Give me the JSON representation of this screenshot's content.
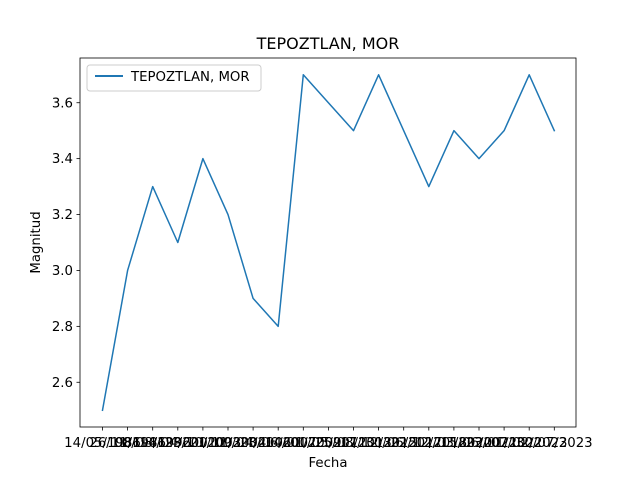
{
  "chart_data": {
    "type": "line",
    "title": "TEPOZTLAN, MOR",
    "xlabel": "Fecha",
    "ylabel": "Magnitud",
    "x": [
      "14/05/1986",
      "26/11/1986",
      "08/08/1996",
      "14/04/2001",
      "23/10/2003",
      "21/11/2004",
      "09/04/2006",
      "23/06/2007",
      "14/01/2009",
      "01/05/2011",
      "25/08/2013",
      "17/12/2015",
      "30/06/2017",
      "22/12/2018",
      "12/03/2020",
      "15/06/2021",
      "23/01/2022",
      "07/02/2023",
      "30/07/2023"
    ],
    "series": [
      {
        "name": "TEPOZTLAN, MOR",
        "values": [
          2.5,
          3.0,
          3.3,
          3.1,
          3.4,
          3.2,
          2.9,
          2.8,
          3.7,
          3.6,
          3.5,
          3.7,
          3.5,
          3.3,
          3.5,
          3.4,
          3.5,
          3.7,
          3.5
        ],
        "color": "#1f77b4"
      }
    ],
    "yticks": [
      "2.6",
      "2.8",
      "3.0",
      "3.2",
      "3.4",
      "3.6"
    ],
    "ylim": [
      2.44,
      3.76
    ],
    "grid": false,
    "legend": "upper-left"
  }
}
